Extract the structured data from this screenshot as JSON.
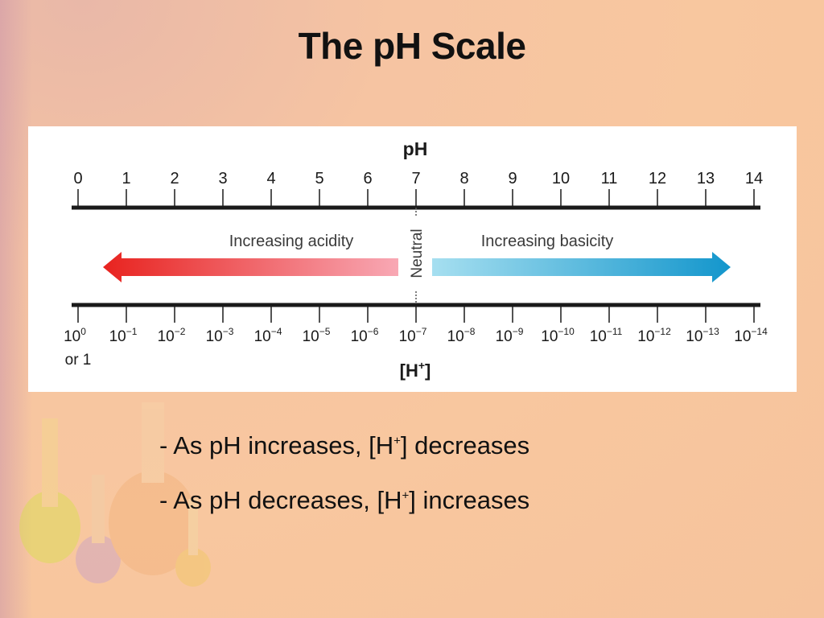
{
  "slide": {
    "title": "The pH Scale"
  },
  "diagram": {
    "ph_axis_label": "pH",
    "ph_ticks": [
      "0",
      "1",
      "2",
      "3",
      "4",
      "5",
      "6",
      "7",
      "8",
      "9",
      "10",
      "11",
      "12",
      "13",
      "14"
    ],
    "acid_label": "Increasing acidity",
    "base_label": "Increasing basicity",
    "neutral_label": "Neutral",
    "h_axis_label": "[H",
    "h_axis_label_sup": "+",
    "h_axis_label_close": "]",
    "h_tick_base": "10",
    "h_tick_exponents": [
      "0",
      "−1",
      "−2",
      "−3",
      "−4",
      "−5",
      "−6",
      "−7",
      "−8",
      "−9",
      "−10",
      "−11",
      "−12",
      "−13",
      "−14"
    ],
    "h_first_alt": "or 1",
    "colors": {
      "acid_start": "#e8231f",
      "acid_end": "#f8a8b4",
      "base_start": "#a6dff0",
      "base_end": "#1396cc",
      "axis": "#1a1a1a"
    }
  },
  "bullets": [
    {
      "prefix": "- As pH increases, [H",
      "sup": "+",
      "suffix": "] decreases"
    },
    {
      "prefix": "- As pH decreases, [H",
      "sup": "+",
      "suffix": "] increases"
    }
  ]
}
